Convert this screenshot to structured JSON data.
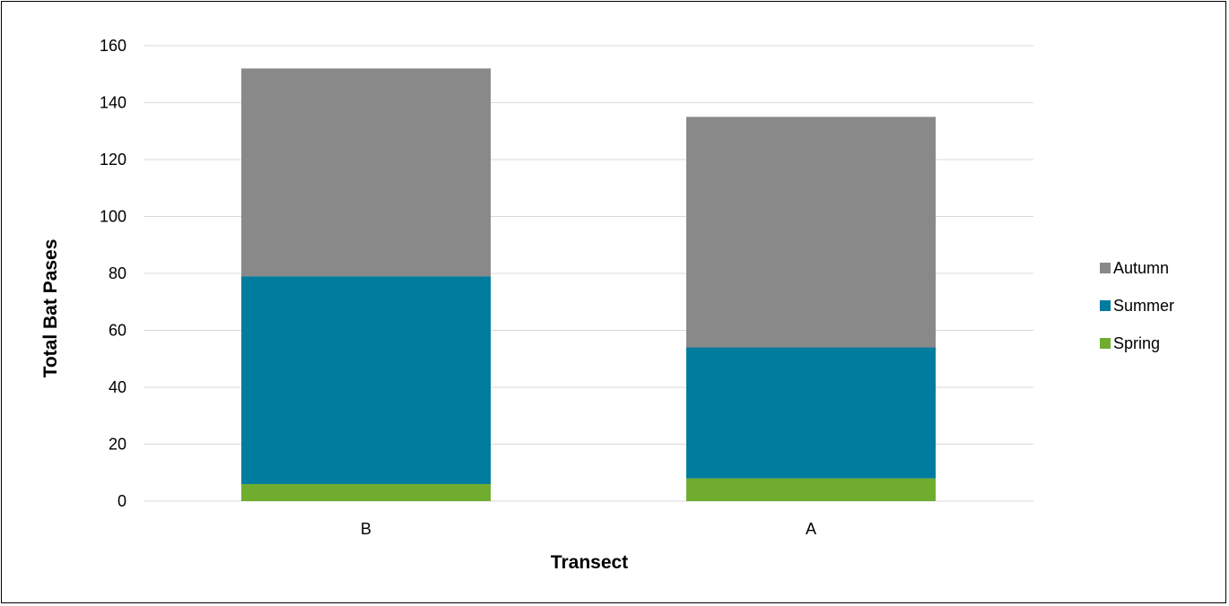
{
  "chart_data": {
    "type": "bar",
    "stacked": true,
    "categories": [
      "B",
      "A"
    ],
    "series": [
      {
        "name": "Spring",
        "values": [
          6,
          8
        ],
        "color": "#70ad2f"
      },
      {
        "name": "Summer",
        "values": [
          73,
          46
        ],
        "color": "#007c9f"
      },
      {
        "name": "Autumn",
        "values": [
          73,
          81
        ],
        "color": "#898989"
      }
    ],
    "title": "",
    "xlabel": "Transect",
    "ylabel": "Total Bat Pases",
    "ylim": [
      0,
      160
    ],
    "yticks": [
      0,
      20,
      40,
      60,
      80,
      100,
      120,
      140,
      160
    ],
    "grid": true,
    "legend_position": "right",
    "legend_order": [
      "Autumn",
      "Summer",
      "Spring"
    ],
    "gridline_color": "#d9d9d9"
  }
}
